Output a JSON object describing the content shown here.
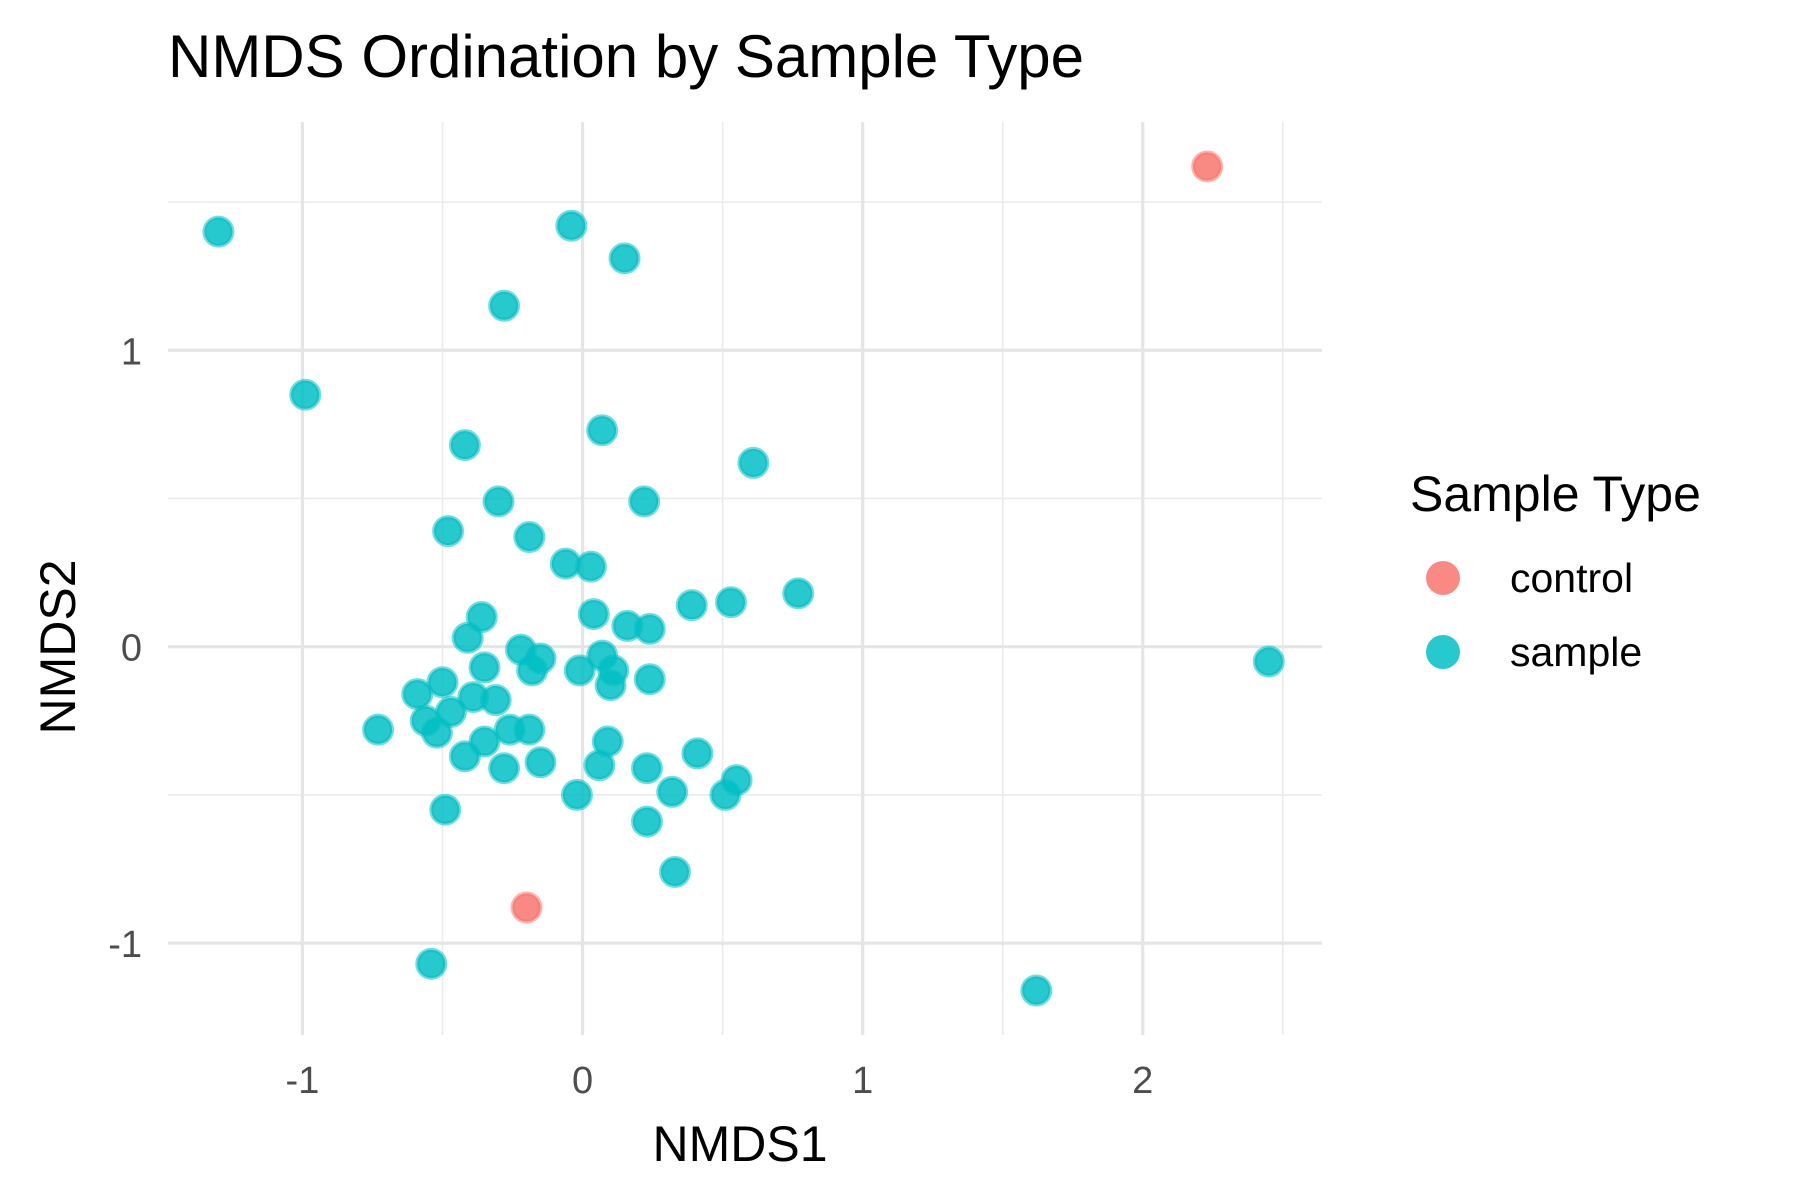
{
  "chart_data": {
    "type": "scatter",
    "title": "NMDS Ordination by Sample Type",
    "xlabel": "NMDS1",
    "ylabel": "NMDS2",
    "xlim": [
      -1.48,
      2.64
    ],
    "ylim": [
      -1.31,
      1.77
    ],
    "xticks": [
      -1,
      0,
      1,
      2
    ],
    "yticks": [
      -1,
      0,
      1
    ],
    "grid": true,
    "legend": {
      "title": "Sample Type",
      "position": "right"
    },
    "series": [
      {
        "name": "control",
        "color": "#F8766D",
        "points": [
          [
            2.23,
            1.62
          ],
          [
            -0.2,
            -0.88
          ]
        ]
      },
      {
        "name": "sample",
        "color": "#00BFC4",
        "points": [
          [
            -1.3,
            1.4
          ],
          [
            -0.04,
            1.42
          ],
          [
            0.15,
            1.31
          ],
          [
            -0.28,
            1.15
          ],
          [
            -0.99,
            0.85
          ],
          [
            -0.42,
            0.68
          ],
          [
            0.07,
            0.73
          ],
          [
            0.61,
            0.62
          ],
          [
            -0.3,
            0.49
          ],
          [
            0.22,
            0.49
          ],
          [
            -0.48,
            0.39
          ],
          [
            -0.19,
            0.37
          ],
          [
            -0.06,
            0.28
          ],
          [
            0.03,
            0.27
          ],
          [
            -0.36,
            0.1
          ],
          [
            0.04,
            0.11
          ],
          [
            0.39,
            0.14
          ],
          [
            0.53,
            0.15
          ],
          [
            0.77,
            0.18
          ],
          [
            -0.41,
            0.03
          ],
          [
            0.16,
            0.07
          ],
          [
            0.24,
            0.06
          ],
          [
            -0.22,
            -0.01
          ],
          [
            -0.15,
            -0.04
          ],
          [
            0.07,
            -0.03
          ],
          [
            -0.35,
            -0.07
          ],
          [
            -0.18,
            -0.08
          ],
          [
            0.11,
            -0.08
          ],
          [
            -0.01,
            -0.08
          ],
          [
            0.1,
            -0.13
          ],
          [
            0.24,
            -0.11
          ],
          [
            -0.5,
            -0.12
          ],
          [
            -0.59,
            -0.16
          ],
          [
            -0.39,
            -0.17
          ],
          [
            -0.31,
            -0.18
          ],
          [
            -0.47,
            -0.22
          ],
          [
            -0.56,
            -0.25
          ],
          [
            -0.52,
            -0.29
          ],
          [
            -0.73,
            -0.28
          ],
          [
            -0.26,
            -0.28
          ],
          [
            -0.19,
            -0.28
          ],
          [
            -0.35,
            -0.32
          ],
          [
            0.09,
            -0.32
          ],
          [
            -0.42,
            -0.37
          ],
          [
            -0.28,
            -0.41
          ],
          [
            -0.15,
            -0.39
          ],
          [
            0.06,
            -0.4
          ],
          [
            0.23,
            -0.41
          ],
          [
            0.41,
            -0.36
          ],
          [
            0.55,
            -0.45
          ],
          [
            0.51,
            -0.5
          ],
          [
            0.32,
            -0.49
          ],
          [
            -0.02,
            -0.5
          ],
          [
            -0.49,
            -0.55
          ],
          [
            0.23,
            -0.59
          ],
          [
            0.33,
            -0.76
          ],
          [
            -0.54,
            -1.07
          ],
          [
            1.62,
            -1.16
          ],
          [
            2.45,
            -0.05
          ]
        ]
      }
    ]
  }
}
